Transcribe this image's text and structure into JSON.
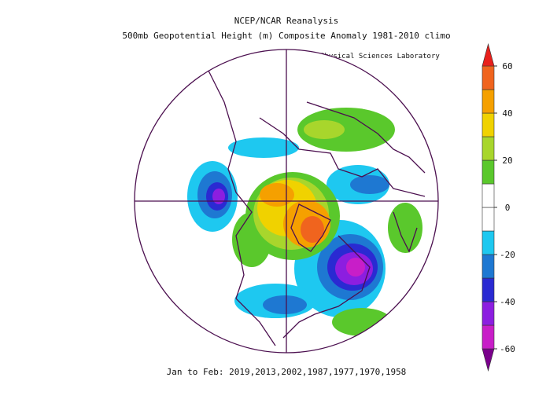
{
  "header": {
    "title": "NCEP/NCAR Reanalysis",
    "subtitle": "500mb Geopotential Height (m) Composite Anomaly 1981-2010 climo",
    "credit": "NOAA Physical Sciences Laboratory"
  },
  "footer": {
    "text": "Jan to Feb: 2019,2013,2002,1987,1977,1970,1958"
  },
  "colorbar": {
    "levels": [
      -60,
      -50,
      -40,
      -30,
      -20,
      -10,
      0,
      10,
      20,
      30,
      40,
      50,
      60
    ],
    "colors": [
      "#7a008c",
      "#c81ec8",
      "#8c1ee0",
      "#2a2ad2",
      "#1e78d2",
      "#1ec8f0",
      "#ffffff",
      "#ffffff",
      "#5ac82c",
      "#a8d62c",
      "#f0d200",
      "#f5a000",
      "#f0641e",
      "#e8201c"
    ],
    "ticks": [
      60,
      40,
      20,
      0,
      -20,
      -40,
      -60
    ]
  }
}
